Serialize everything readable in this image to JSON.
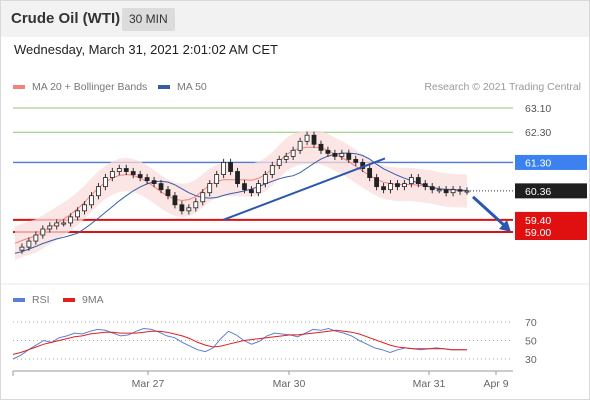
{
  "header": {
    "title": "Crude Oil (WTI)",
    "interval": "30 MIN",
    "datetime": "Wednesday, March 31, 2021 2:01:02 AM CET"
  },
  "legend": {
    "ma20_bb": {
      "label": "MA 20 + Bollinger Bands",
      "color": "#f4827c"
    },
    "ma50": {
      "label": "MA 50",
      "color": "#345ea8"
    },
    "copyright": "Research © 2021 Trading Central"
  },
  "rsi_legend": {
    "rsi": {
      "label": "RSI",
      "color": "#5b7fd6"
    },
    "ma9": {
      "label": "9MA",
      "color": "#e02020"
    }
  },
  "chart_data": {
    "type": "candlestick",
    "instrument": "Crude Oil (WTI)",
    "interval": "30 MIN",
    "x_ticks": [
      "Mar 27",
      "Mar 30",
      "Mar 31",
      "Apr 9"
    ],
    "y_ticks": [
      "63.10",
      "62.30",
      "61.30",
      "60.36",
      "59.40",
      "59.00"
    ],
    "current_price": 60.36,
    "resistance_levels": [
      61.3,
      62.3,
      63.1
    ],
    "support_levels": [
      59.4,
      59.0
    ],
    "price_series": [
      58.4,
      58.5,
      58.7,
      58.9,
      59.1,
      59.2,
      59.3,
      59.3,
      59.5,
      59.7,
      59.9,
      60.2,
      60.5,
      60.8,
      61.0,
      61.1,
      61.0,
      60.9,
      60.8,
      60.7,
      60.6,
      60.4,
      60.2,
      59.9,
      59.7,
      59.8,
      60.0,
      60.3,
      60.6,
      60.9,
      61.3,
      61.0,
      60.6,
      60.4,
      60.3,
      60.6,
      60.9,
      61.2,
      61.4,
      61.5,
      61.7,
      62.0,
      62.2,
      61.9,
      61.7,
      61.6,
      61.5,
      61.6,
      61.4,
      61.3,
      61.1,
      60.8,
      60.5,
      60.4,
      60.6,
      60.5,
      60.6,
      60.8,
      60.6,
      60.5,
      60.4,
      60.4,
      60.3,
      60.4,
      60.35,
      60.36
    ],
    "projection": {
      "from": 60.36,
      "to": 59.0
    },
    "trendlines": [
      {
        "from_label": "Mar 29",
        "from_value": 59.4,
        "to_label": "Mar 30",
        "to_value": 61.3
      }
    ],
    "rsi": {
      "y_ticks": [
        30,
        50,
        70
      ],
      "rsi_values": [
        30,
        34,
        40,
        45,
        50,
        48,
        53,
        55,
        58,
        57,
        60,
        62,
        61,
        58,
        55,
        56,
        60,
        63,
        62,
        59,
        55,
        53,
        48,
        44,
        40,
        38,
        42,
        52,
        60,
        56,
        50,
        46,
        49,
        55,
        58,
        57,
        56,
        54,
        58,
        62,
        61,
        63,
        60,
        58,
        55,
        50,
        46,
        42,
        40,
        37,
        40,
        42,
        41,
        40,
        41,
        42,
        41,
        40,
        40,
        40
      ],
      "ma9_values": [
        35,
        37,
        40,
        43,
        46,
        48,
        50,
        52,
        54,
        55,
        57,
        58,
        59,
        59,
        58,
        58,
        58,
        59,
        60,
        60,
        59,
        57,
        55,
        52,
        48,
        45,
        43,
        44,
        46,
        48,
        50,
        51,
        52,
        53,
        54,
        55,
        56,
        56,
        57,
        58,
        59,
        60,
        61,
        60,
        59,
        57,
        54,
        51,
        48,
        45,
        43,
        42,
        41,
        41,
        41,
        41,
        41,
        40,
        40,
        40
      ]
    }
  }
}
